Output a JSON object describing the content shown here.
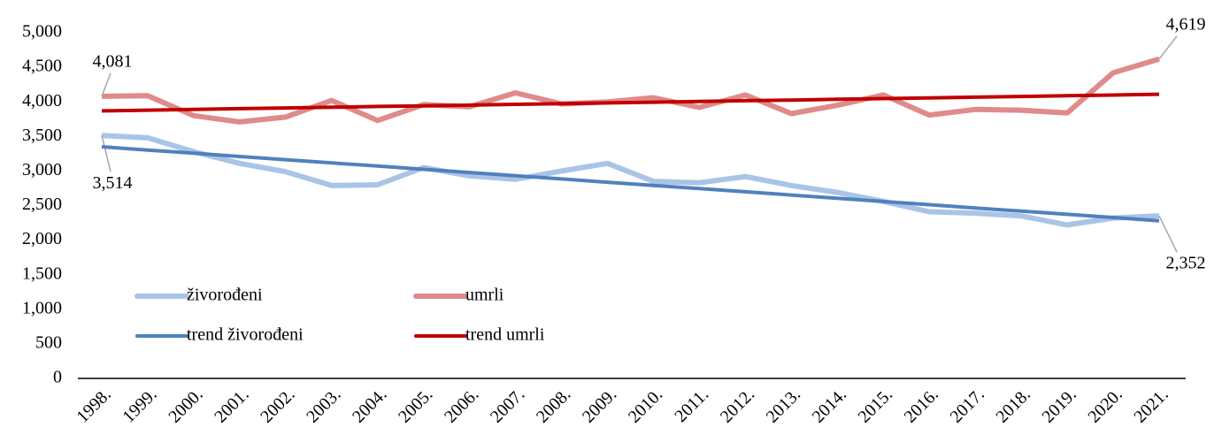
{
  "chart_data": {
    "type": "line",
    "categories": [
      "1998.",
      "1999.",
      "2000.",
      "2001.",
      "2002.",
      "2003.",
      "2004.",
      "2005.",
      "2006.",
      "2007.",
      "2008.",
      "2009.",
      "2010.",
      "2011.",
      "2012.",
      "2013.",
      "2014.",
      "2015.",
      "2016.",
      "2017.",
      "2018.",
      "2019.",
      "2020.",
      "2021."
    ],
    "series": [
      {
        "name": "živorođeni",
        "color": "#a9c4e6",
        "width": 6,
        "values": [
          3514,
          3480,
          3280,
          3110,
          2990,
          2790,
          2800,
          3050,
          2930,
          2880,
          3000,
          3110,
          2850,
          2830,
          2920,
          2790,
          2690,
          2560,
          2410,
          2390,
          2350,
          2220,
          2320,
          2352
        ],
        "value_labels": [
          "3,514",
          null,
          null,
          null,
          null,
          null,
          null,
          null,
          null,
          null,
          null,
          null,
          null,
          null,
          null,
          null,
          null,
          null,
          null,
          null,
          null,
          null,
          null,
          "2,352"
        ]
      },
      {
        "name": "umrli",
        "color": "#e08a8a",
        "width": 6,
        "values": [
          4081,
          4090,
          3800,
          3710,
          3780,
          4020,
          3730,
          3960,
          3930,
          4130,
          3970,
          4000,
          4060,
          3920,
          4100,
          3830,
          3950,
          4100,
          3810,
          3890,
          3880,
          3840,
          4420,
          4619
        ],
        "value_labels": [
          "4,081",
          null,
          null,
          null,
          null,
          null,
          null,
          null,
          null,
          null,
          null,
          null,
          null,
          null,
          null,
          null,
          null,
          null,
          null,
          null,
          null,
          null,
          null,
          "4,619"
        ]
      },
      {
        "name": "trend živorođeni",
        "color": "#4f81bd",
        "width": 4,
        "values": [
          3350,
          3303,
          3257,
          3210,
          3164,
          3117,
          3071,
          3024,
          2978,
          2931,
          2885,
          2838,
          2792,
          2745,
          2699,
          2652,
          2606,
          2559,
          2513,
          2466,
          2420,
          2373,
          2327,
          2280
        ]
      },
      {
        "name": "trend umrli",
        "color": "#c00000",
        "width": 4,
        "values": [
          3870,
          3880,
          3891,
          3901,
          3912,
          3922,
          3933,
          3943,
          3953,
          3964,
          3974,
          3985,
          3995,
          4006,
          4016,
          4026,
          4037,
          4047,
          4058,
          4068,
          4078,
          4089,
          4099,
          4110
        ]
      }
    ],
    "ylim": [
      0,
      5000
    ],
    "yticks": [
      0,
      500,
      {
        "value": 1000,
        "label": "1,000"
      },
      {
        "value": 1500,
        "label": "1,500"
      },
      {
        "value": 2000,
        "label": "2,000"
      },
      {
        "value": 2500,
        "label": "2,500"
      },
      {
        "value": 3000,
        "label": "3,000"
      },
      {
        "value": 3500,
        "label": "3,500"
      },
      {
        "value": 4000,
        "label": "4,000"
      },
      {
        "value": 4500,
        "label": "4,500"
      },
      {
        "value": 5000,
        "label": "5,000"
      }
    ],
    "grid": false,
    "legend": "lower-left"
  }
}
